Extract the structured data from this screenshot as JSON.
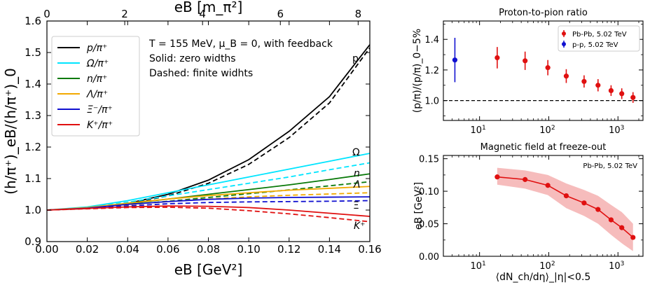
{
  "chart_data": [
    {
      "type": "line",
      "ylabel": "(h/π⁺)_eB/(h/π⁺)_0",
      "xlabel": "eB [GeV²]",
      "top_xlabel": "eB [m_π²]",
      "xlim": [
        0,
        0.16
      ],
      "ylim": [
        0.9,
        1.6
      ],
      "top_xlim": [
        0,
        8.3
      ],
      "xticks": [
        "0.00",
        "0.02",
        "0.04",
        "0.06",
        "0.08",
        "0.10",
        "0.12",
        "0.14",
        "0.16"
      ],
      "yticks": [
        "0.9",
        "1.0",
        "1.1",
        "1.2",
        "1.3",
        "1.4",
        "1.5",
        "1.6"
      ],
      "top_xticks": [
        "0",
        "2",
        "4",
        "6",
        "8"
      ],
      "annotation": [
        "T = 155 MeV, μ_B = 0, with feedback",
        "Solid: zero widths",
        "Dashed: finite widhts"
      ],
      "legend_position": "upper-left",
      "legend": [
        "p/π⁺",
        "Ω/π⁺",
        "n/π⁺",
        "Λ/π⁺",
        "Ξ⁻/π⁺",
        "K⁺/π⁺"
      ],
      "series": [
        {
          "name": "p/π⁺",
          "color": "#000000",
          "label": "p",
          "x": [
            0,
            0.02,
            0.04,
            0.06,
            0.08,
            0.1,
            0.12,
            0.14,
            0.16
          ],
          "solid": [
            1.0,
            1.005,
            1.021,
            1.05,
            1.095,
            1.16,
            1.25,
            1.36,
            1.525
          ],
          "dashed": [
            1.0,
            1.005,
            1.02,
            1.045,
            1.085,
            1.145,
            1.23,
            1.34,
            1.515
          ]
        },
        {
          "name": "Ω/π⁺",
          "color": "#00e5ff",
          "label": "Ω",
          "x": [
            0,
            0.02,
            0.04,
            0.06,
            0.08,
            0.1,
            0.12,
            0.14,
            0.16
          ],
          "solid": [
            1.0,
            1.01,
            1.03,
            1.055,
            1.08,
            1.105,
            1.13,
            1.155,
            1.18
          ],
          "dashed": [
            1.0,
            1.008,
            1.025,
            1.045,
            1.065,
            1.085,
            1.105,
            1.128,
            1.15
          ]
        },
        {
          "name": "n/π⁺",
          "color": "#0a7a0a",
          "label": "n",
          "x": [
            0,
            0.02,
            0.04,
            0.06,
            0.08,
            0.1,
            0.12,
            0.14,
            0.16
          ],
          "solid": [
            1.0,
            1.007,
            1.02,
            1.035,
            1.05,
            1.065,
            1.08,
            1.097,
            1.115
          ],
          "dashed": [
            1.0,
            1.006,
            1.017,
            1.028,
            1.04,
            1.052,
            1.064,
            1.077,
            1.09
          ]
        },
        {
          "name": "Λ/π⁺",
          "color": "#f2a900",
          "label": "Λ",
          "x": [
            0,
            0.02,
            0.04,
            0.06,
            0.08,
            0.1,
            0.12,
            0.14,
            0.16
          ],
          "solid": [
            1.0,
            1.008,
            1.022,
            1.035,
            1.046,
            1.055,
            1.063,
            1.069,
            1.075
          ],
          "dashed": [
            1.0,
            1.006,
            1.017,
            1.027,
            1.035,
            1.042,
            1.047,
            1.051,
            1.055
          ]
        },
        {
          "name": "Ξ⁻/π⁺",
          "color": "#1010d0",
          "label": "Ξ",
          "x": [
            0,
            0.02,
            0.04,
            0.06,
            0.08,
            0.1,
            0.12,
            0.14,
            0.16
          ],
          "solid": [
            1.0,
            1.006,
            1.018,
            1.027,
            1.034,
            1.038,
            1.04,
            1.041,
            1.042
          ],
          "dashed": [
            1.0,
            1.005,
            1.013,
            1.02,
            1.024,
            1.026,
            1.027,
            1.028,
            1.03
          ]
        },
        {
          "name": "K⁺/π⁺",
          "color": "#e01010",
          "label": "K⁺",
          "x": [
            0,
            0.02,
            0.04,
            0.06,
            0.08,
            0.1,
            0.12,
            0.14,
            0.16
          ],
          "solid": [
            1.0,
            1.005,
            1.01,
            1.013,
            1.012,
            1.008,
            1.0,
            0.99,
            0.98
          ],
          "dashed": [
            1.0,
            1.004,
            1.008,
            1.009,
            1.006,
            0.998,
            0.988,
            0.976,
            0.963
          ]
        }
      ]
    },
    {
      "type": "scatter",
      "title": "Proton-to-pion ratio",
      "ylabel": "(p/π)/(p/π)_0−5%",
      "xscale": "log",
      "xlim": [
        3,
        2300
      ],
      "ylim": [
        0.87,
        1.52
      ],
      "xticks": [
        "10¹",
        "10²",
        "10³"
      ],
      "yticks": [
        "1.0",
        "1.2",
        "1.4"
      ],
      "reference_line": 1.0,
      "legend_position": "upper-right",
      "series": [
        {
          "name": "Pb-Pb, 5.02 TeV",
          "color": "#e01010",
          "x": [
            18.0,
            45.5,
            97.0,
            179.0,
            324.0,
            515.0,
            795.0,
            1135.0,
            1650.0
          ],
          "y": [
            1.28,
            1.26,
            1.215,
            1.16,
            1.125,
            1.1,
            1.065,
            1.045,
            1.02
          ],
          "err": [
            0.07,
            0.06,
            0.05,
            0.045,
            0.04,
            0.04,
            0.035,
            0.035,
            0.035
          ]
        },
        {
          "name": "p-p, 5.02 TeV",
          "color": "#1010d0",
          "x": [
            4.4
          ],
          "y": [
            1.265
          ],
          "err": [
            0.145
          ]
        }
      ]
    },
    {
      "type": "line",
      "title": "Magnetic field at freeze-out",
      "annotation": "Pb-Pb, 5.02 TeV",
      "ylabel": "eB [GeV²]",
      "xlabel": "⟨dN_ch/dη⟩_|η|<0.5",
      "xscale": "log",
      "xlim": [
        3,
        2300
      ],
      "ylim": [
        0,
        0.155
      ],
      "xticks": [
        "10¹",
        "10²",
        "10³"
      ],
      "yticks": [
        "0.00",
        "0.05",
        "0.10",
        "0.15"
      ],
      "series": [
        {
          "color": "#e01010",
          "x": [
            18.0,
            45.5,
            97.0,
            179.0,
            324.0,
            515.0,
            795.0,
            1135.0,
            1650.0
          ],
          "y": [
            0.122,
            0.118,
            0.109,
            0.093,
            0.082,
            0.072,
            0.056,
            0.044,
            0.029
          ],
          "band_upper": [
            0.136,
            0.132,
            0.125,
            0.112,
            0.102,
            0.093,
            0.079,
            0.068,
            0.05
          ],
          "band_lower": [
            0.11,
            0.104,
            0.094,
            0.074,
            0.062,
            0.05,
            0.033,
            0.02,
            0.008
          ]
        }
      ]
    }
  ]
}
